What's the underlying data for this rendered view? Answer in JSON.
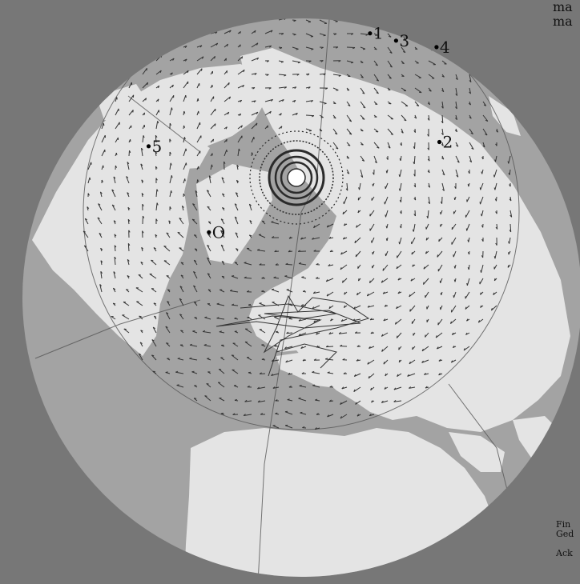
{
  "corner_text": {
    "top_line_1": "ma",
    "top_line_2": "ma",
    "bottom_line_1": "Fin",
    "bottom_line_2": "Ged",
    "bottom_line_3": "Ack"
  },
  "markers": [
    {
      "label": "1",
      "lon": 27,
      "lat": 46
    },
    {
      "label": "2",
      "lon": 76,
      "lat": 50
    },
    {
      "label": "3",
      "lon": 36,
      "lat": 44
    },
    {
      "label": "4",
      "lon": 47,
      "lat": 38
    },
    {
      "label": "5",
      "lon": -78,
      "lat": 49
    },
    {
      "label": "O",
      "lon": -122,
      "lat": 62
    }
  ],
  "colors": {
    "background": "#777777",
    "ocean": "#a3a3a3",
    "land": "#e4e4e4",
    "vectors": "#333333"
  },
  "projection": "orthographic, north polar, viewed from the Pacific side",
  "vector_field": "circumpolar wind/flow vectors"
}
